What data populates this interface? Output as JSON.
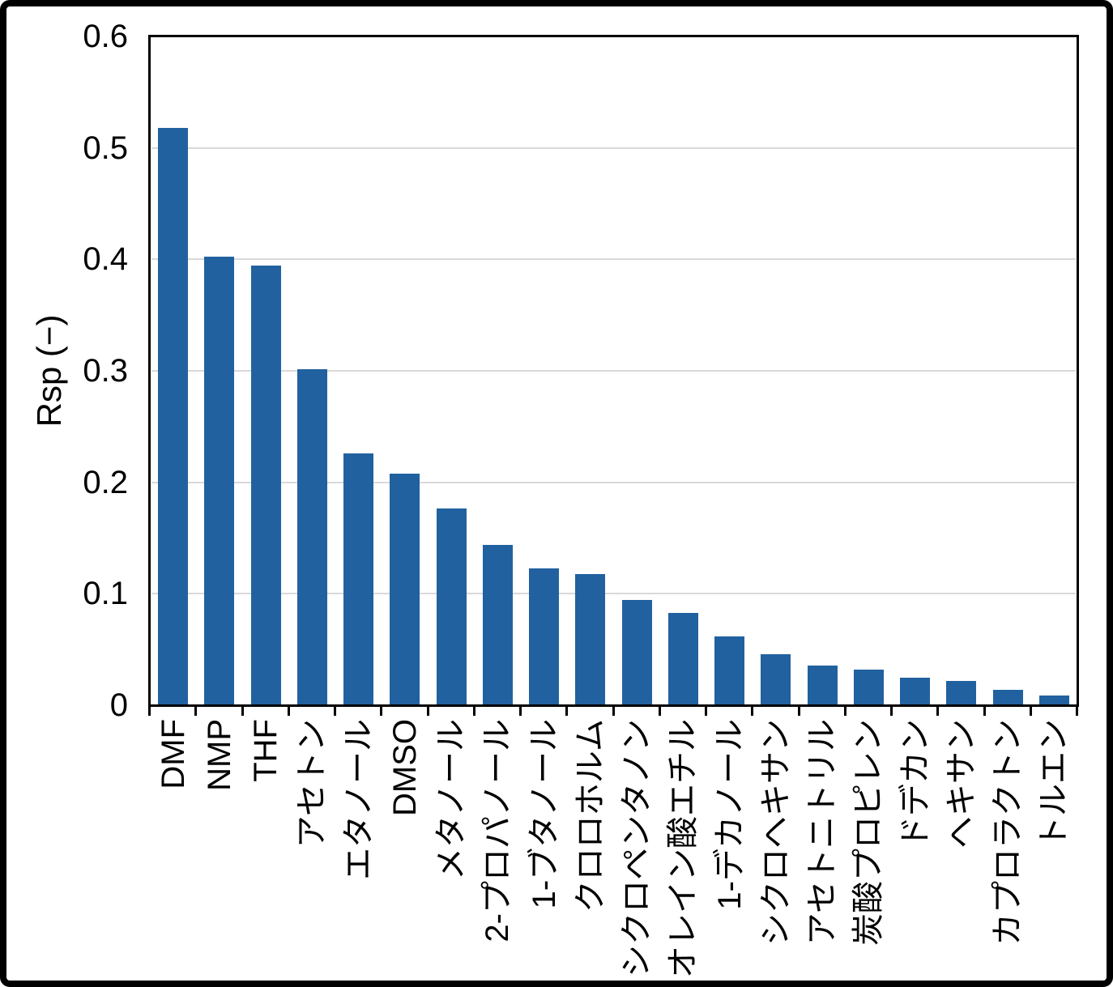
{
  "chart_data": {
    "type": "bar",
    "title": "",
    "xlabel": "",
    "ylabel": "Rsp (−)",
    "ylim": [
      0,
      0.6
    ],
    "grid": true,
    "legend": false,
    "yticks": [
      {
        "label": "0",
        "value": 0.0
      },
      {
        "label": "0.1",
        "value": 0.1
      },
      {
        "label": "0.2",
        "value": 0.2
      },
      {
        "label": "0.3",
        "value": 0.3
      },
      {
        "label": "0.4",
        "value": 0.4
      },
      {
        "label": "0.5",
        "value": 0.5
      },
      {
        "label": "0.6",
        "value": 0.6
      }
    ],
    "categories": [
      "DMF",
      "NMP",
      "THF",
      "アセトン",
      "エタノール",
      "DMSO",
      "メタノール",
      "2-プロパノール",
      "1-ブタノール",
      "クロロホルム",
      "シクロペンタノン",
      "オレイン酸エチル",
      "1-デカノール",
      "シクロヘキサン",
      "アセトニトリル",
      "炭酸プロピレン",
      "ドデカン",
      "ヘキサン",
      "カプロラクトン",
      "トルエン"
    ],
    "values": [
      0.517,
      0.402,
      0.394,
      0.301,
      0.225,
      0.207,
      0.176,
      0.143,
      0.122,
      0.117,
      0.094,
      0.082,
      0.061,
      0.045,
      0.035,
      0.031,
      0.024,
      0.021,
      0.013,
      0.008
    ],
    "colors": {
      "bar": "#2161A0",
      "gridline": "#D9D9D9",
      "axis": "#000000",
      "background": "#FFFFFF"
    }
  }
}
